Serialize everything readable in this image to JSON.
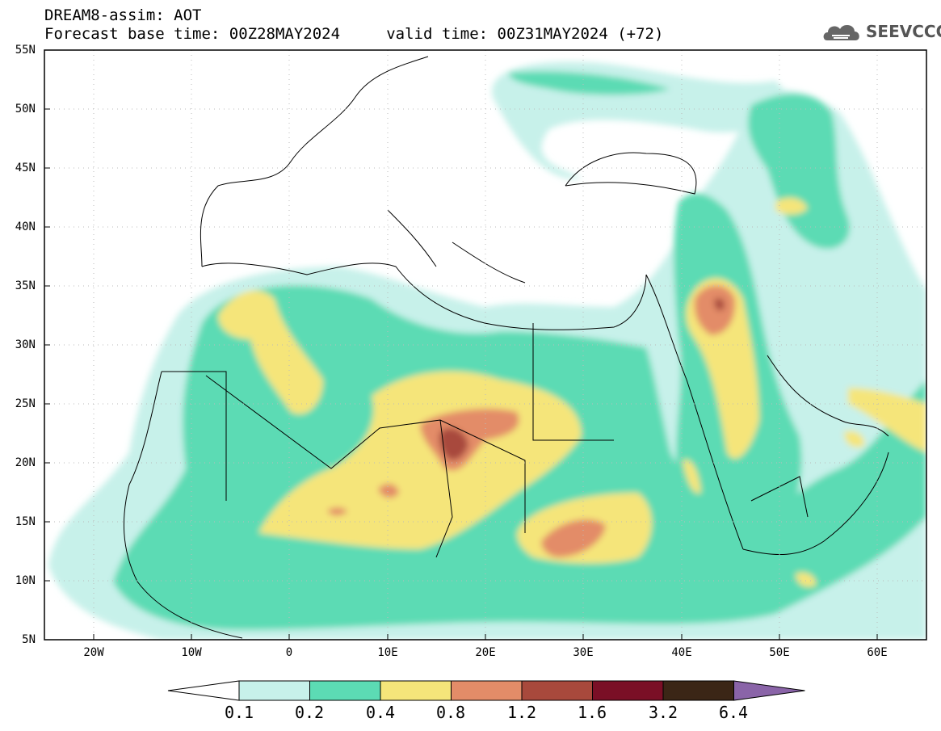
{
  "header": {
    "title_line1": "DREAM8-assim: AOT",
    "title_line2": "Forecast base time: 00Z28MAY2024     valid time: 00Z31MAY2024 (+72)",
    "logo_text": "SEEVCCC",
    "logo_icon": "cloud-icon"
  },
  "map": {
    "variable": "AOT",
    "lat_labels": [
      "55N",
      "50N",
      "45N",
      "40N",
      "35N",
      "30N",
      "25N",
      "20N",
      "15N",
      "10N",
      "5N"
    ],
    "lon_labels": [
      "20W",
      "10W",
      "0",
      "10E",
      "20E",
      "30E",
      "40E",
      "50E",
      "60E"
    ],
    "extent": {
      "lon_min": -25,
      "lon_max": 65,
      "lat_min": 5,
      "lat_max": 55
    },
    "grid": "dotted"
  },
  "colorbar": {
    "levels": [
      "0.1",
      "0.2",
      "0.4",
      "0.8",
      "1.2",
      "1.6",
      "3.2",
      "6.4"
    ],
    "colors": [
      "#ffffff",
      "#c7f1ea",
      "#5cdbb4",
      "#f5e57a",
      "#e38c68",
      "#a8493c",
      "#7a0f26",
      "#3b2616",
      "#8a64a8"
    ]
  }
}
